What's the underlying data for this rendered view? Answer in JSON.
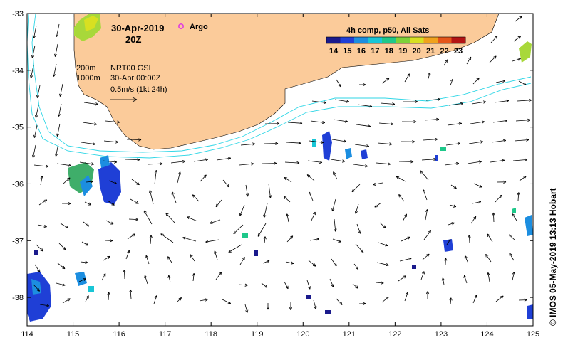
{
  "title": {
    "date": "30-Apr-2019",
    "hour": "20Z",
    "argo_label": "Argo"
  },
  "legend": {
    "contours": [
      "200m",
      "1000m"
    ],
    "product": "NRT00 GSL",
    "product_time": "30-Apr 00:00Z",
    "scale_label": "0.5m/s (1kt 24h)"
  },
  "colorbar": {
    "title": "4h comp, p50, All Sats",
    "ticks": [
      "14",
      "15",
      "16",
      "17",
      "18",
      "19",
      "20",
      "21",
      "22",
      "23"
    ],
    "colors": [
      "#1a1a8c",
      "#1f3fd6",
      "#1c8ee0",
      "#19c6d6",
      "#1ec88a",
      "#7dd23a",
      "#d8e021",
      "#f0a21c",
      "#e5551a",
      "#b41414"
    ]
  },
  "credit": "© IMOS 05-May-2019 13:13 Hobart",
  "chart_data": {
    "type": "map",
    "x_ticks": [
      "114",
      "115",
      "116",
      "117",
      "118",
      "119",
      "120",
      "121",
      "122",
      "123",
      "124",
      "125"
    ],
    "y_ticks": [
      "-33",
      "-34",
      "-35",
      "-36",
      "-37",
      "-38"
    ],
    "xlim": [
      114,
      125
    ],
    "ylim": [
      -38.5,
      -33
    ],
    "colors": {
      "land": "#fbcb9a",
      "contour": "#2fd6e6",
      "argo": "#e040e0"
    }
  }
}
